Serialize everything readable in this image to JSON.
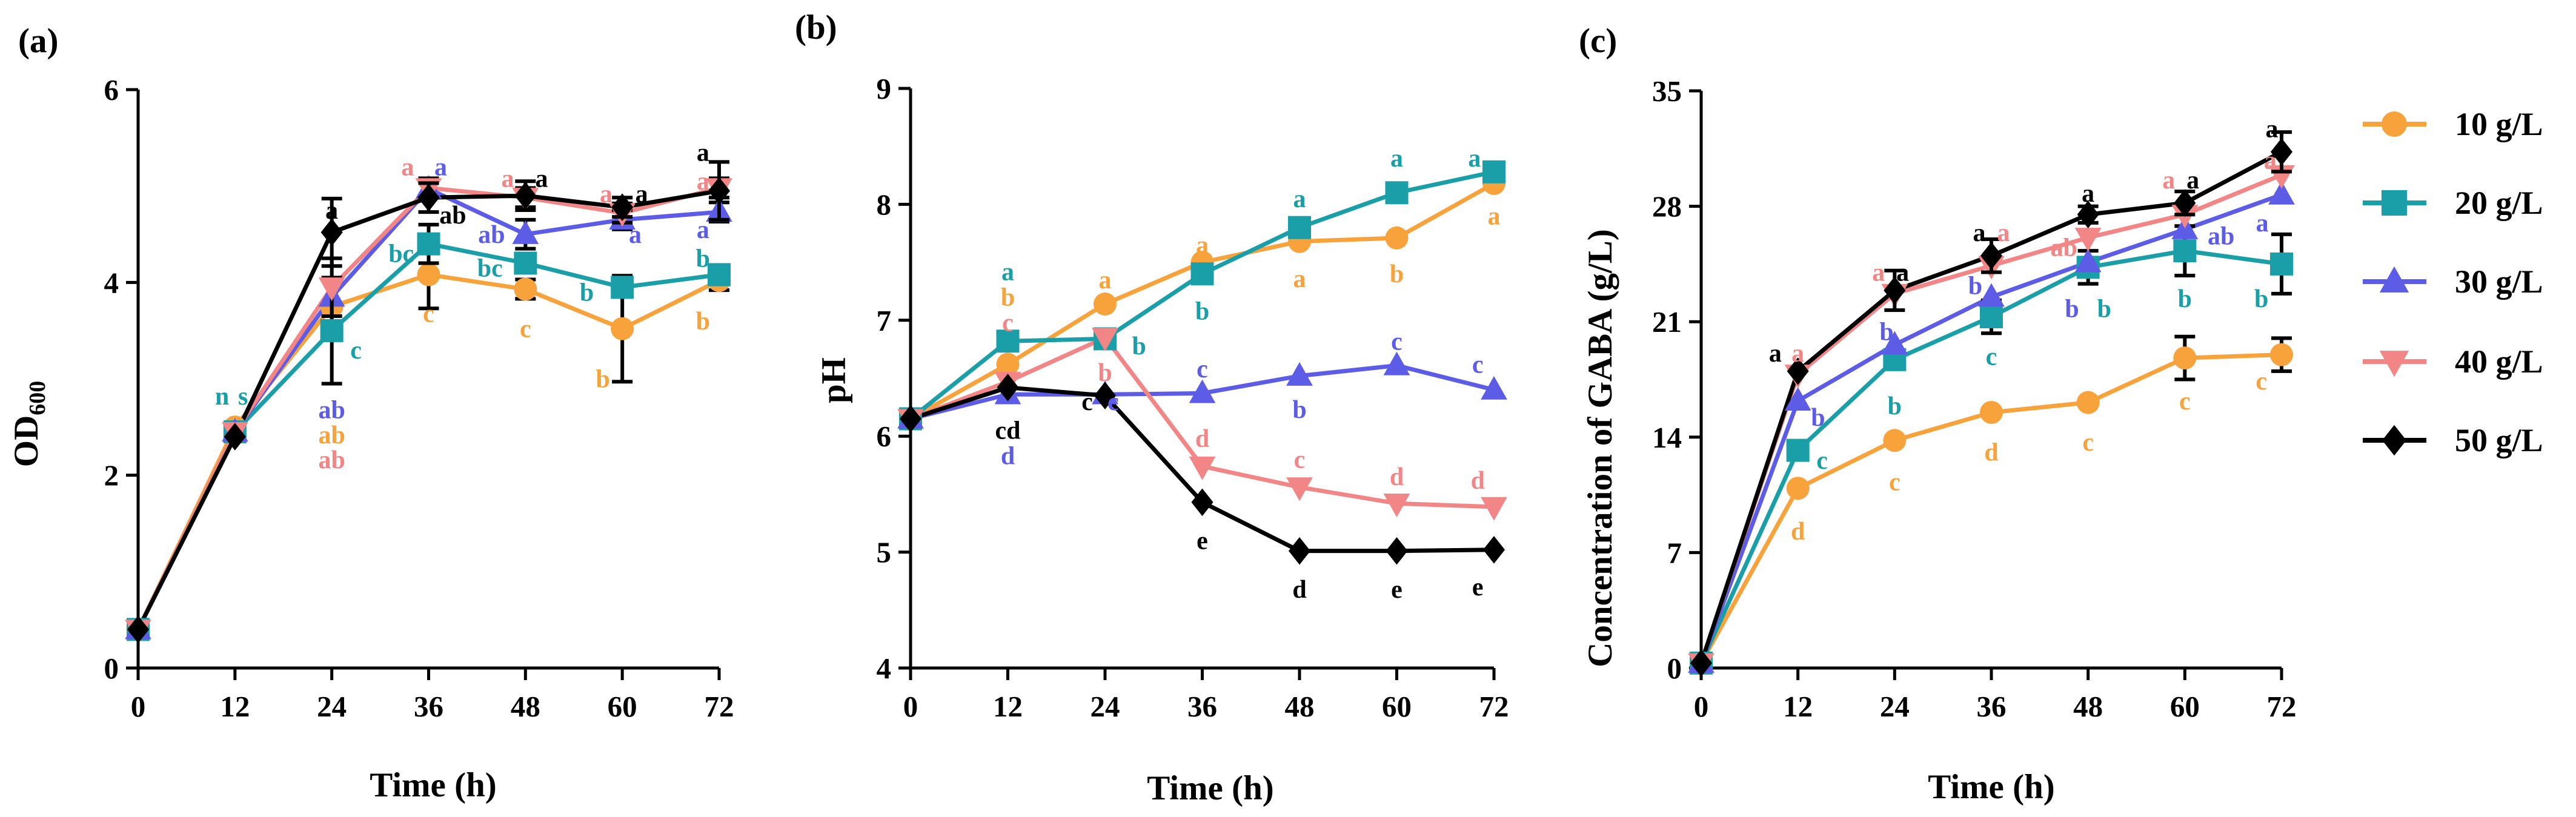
{
  "chart_data": [
    {
      "panel": "(a)",
      "type": "line",
      "xlabel": "Time (h)",
      "ylabel": "OD",
      "ylabel_sub": "600",
      "x": [
        0,
        12,
        24,
        36,
        48,
        60,
        72
      ],
      "x_ticks": [
        "0",
        "12",
        "24",
        "36",
        "48",
        "60",
        "72"
      ],
      "y_ticks": [
        "0",
        "2",
        "4",
        "6"
      ],
      "xlim": [
        0,
        72
      ],
      "ylim": [
        0,
        6
      ],
      "grid": false,
      "series": [
        {
          "name": "10 g/L",
          "color": "#F7A23B",
          "marker": "circle",
          "values": [
            0.4,
            2.5,
            3.75,
            4.08,
            3.93,
            3.52,
            4.02
          ],
          "errors": [
            0,
            0,
            0,
            0.35,
            0.1,
            0.55,
            0.1
          ]
        },
        {
          "name": "20 g/L",
          "color": "#1A9FA8",
          "marker": "square",
          "values": [
            0.4,
            2.45,
            3.5,
            4.4,
            4.2,
            3.95,
            4.08
          ],
          "errors": [
            0,
            0,
            0.55,
            0.2,
            0.1,
            0.1,
            0.1
          ]
        },
        {
          "name": "30 g/L",
          "color": "#5C5CE6",
          "marker": "triangle-up",
          "values": [
            0.4,
            2.45,
            3.85,
            4.97,
            4.5,
            4.65,
            4.73
          ],
          "errors": [
            0,
            0,
            0,
            0,
            0.15,
            0.1,
            0.1
          ]
        },
        {
          "name": "40 g/L",
          "color": "#F28585",
          "marker": "triangle-down",
          "values": [
            0.4,
            2.45,
            3.95,
            4.98,
            4.88,
            4.72,
            4.98
          ],
          "errors": [
            0,
            0,
            0.3,
            0.1,
            0.1,
            0.1,
            0.1
          ]
        },
        {
          "name": "50 g/L",
          "color": "#000000",
          "marker": "diamond",
          "values": [
            0.4,
            2.4,
            4.52,
            4.88,
            4.9,
            4.78,
            4.95
          ],
          "errors": [
            0,
            0,
            0.35,
            0.15,
            0.15,
            0.1,
            0.3
          ]
        }
      ],
      "annotations": [
        {
          "text": "n",
          "x": 10.4,
          "y": 2.82,
          "color": "#1A9FA8"
        },
        {
          "text": "s",
          "x": 13.0,
          "y": 2.82,
          "color": "#1A9FA8"
        },
        {
          "text": "a",
          "x": 24,
          "y": 4.75,
          "color": "#000000"
        },
        {
          "text": "c",
          "x": 27,
          "y": 3.3,
          "color": "#1A9FA8"
        },
        {
          "text": "ab",
          "x": 24,
          "y": 2.68,
          "color": "#5C5CE6"
        },
        {
          "text": "ab",
          "x": 24,
          "y": 2.42,
          "color": "#F7A23B"
        },
        {
          "text": "ab",
          "x": 24,
          "y": 2.16,
          "color": "#F28585"
        },
        {
          "text": "a",
          "x": 33.4,
          "y": 5.2,
          "color": "#F28585"
        },
        {
          "text": "a",
          "x": 37.5,
          "y": 5.2,
          "color": "#5C5CE6"
        },
        {
          "text": "ab",
          "x": 39,
          "y": 4.7,
          "color": "#000000"
        },
        {
          "text": "bc",
          "x": 32.6,
          "y": 4.3,
          "color": "#1A9FA8"
        },
        {
          "text": "c",
          "x": 36,
          "y": 3.68,
          "color": "#F7A23B"
        },
        {
          "text": "a",
          "x": 45.8,
          "y": 5.08,
          "color": "#F28585"
        },
        {
          "text": "a",
          "x": 50,
          "y": 5.08,
          "color": "#000000"
        },
        {
          "text": "ab",
          "x": 43.8,
          "y": 4.5,
          "color": "#5C5CE6"
        },
        {
          "text": "bc",
          "x": 43.6,
          "y": 4.15,
          "color": "#1A9FA8"
        },
        {
          "text": "c",
          "x": 48,
          "y": 3.52,
          "color": "#F7A23B"
        },
        {
          "text": "a",
          "x": 58,
          "y": 4.92,
          "color": "#F28585"
        },
        {
          "text": "a",
          "x": 62.4,
          "y": 4.92,
          "color": "#000000"
        },
        {
          "text": "a",
          "x": 61.6,
          "y": 4.5,
          "color": "#5C5CE6"
        },
        {
          "text": "b",
          "x": 55.6,
          "y": 3.9,
          "color": "#1A9FA8"
        },
        {
          "text": "b",
          "x": 57.6,
          "y": 3.0,
          "color": "#F7A23B"
        },
        {
          "text": "a",
          "x": 70,
          "y": 5.35,
          "color": "#000000"
        },
        {
          "text": "a",
          "x": 70,
          "y": 5.05,
          "color": "#F28585"
        },
        {
          "text": "a",
          "x": 70,
          "y": 4.55,
          "color": "#5C5CE6"
        },
        {
          "text": "b",
          "x": 70,
          "y": 4.25,
          "color": "#1A9FA8"
        },
        {
          "text": "b",
          "x": 70,
          "y": 3.6,
          "color": "#F7A23B"
        }
      ]
    },
    {
      "panel": "(b)",
      "type": "line",
      "xlabel": "Time (h)",
      "ylabel": "pH",
      "x": [
        0,
        12,
        24,
        36,
        48,
        60,
        72
      ],
      "x_ticks": [
        "0",
        "12",
        "24",
        "36",
        "48",
        "60",
        "72"
      ],
      "y_ticks": [
        "4",
        "5",
        "6",
        "7",
        "8",
        "9"
      ],
      "xlim": [
        0,
        72
      ],
      "ylim": [
        4,
        9
      ],
      "grid": false,
      "series": [
        {
          "name": "10 g/L",
          "color": "#F7A23B",
          "marker": "circle",
          "values": [
            6.15,
            6.62,
            7.14,
            7.5,
            7.68,
            7.71,
            8.18
          ],
          "errors": [
            0,
            0,
            0,
            0,
            0,
            0,
            0
          ]
        },
        {
          "name": "20 g/L",
          "color": "#1A9FA8",
          "marker": "square",
          "values": [
            6.15,
            6.82,
            6.84,
            7.4,
            7.8,
            8.1,
            8.28
          ],
          "errors": [
            0,
            0,
            0,
            0,
            0.08,
            0,
            0
          ]
        },
        {
          "name": "30 g/L",
          "color": "#5C5CE6",
          "marker": "triangle-up",
          "values": [
            6.15,
            6.36,
            6.36,
            6.37,
            6.52,
            6.61,
            6.4
          ],
          "errors": [
            0,
            0,
            0,
            0,
            0,
            0,
            0
          ]
        },
        {
          "name": "40 g/L",
          "color": "#F28585",
          "marker": "triangle-down",
          "values": [
            6.15,
            6.47,
            6.85,
            5.74,
            5.56,
            5.42,
            5.39
          ],
          "errors": [
            0,
            0,
            0,
            0,
            0,
            0,
            0
          ]
        },
        {
          "name": "50 g/L",
          "color": "#000000",
          "marker": "diamond",
          "values": [
            6.15,
            6.42,
            6.35,
            5.43,
            5.01,
            5.01,
            5.02
          ],
          "errors": [
            0,
            0,
            0,
            0,
            0,
            0,
            0
          ]
        }
      ],
      "annotations": [
        {
          "text": "a",
          "x": 12,
          "y": 7.42,
          "color": "#1A9FA8"
        },
        {
          "text": "b",
          "x": 12,
          "y": 7.2,
          "color": "#F7A23B"
        },
        {
          "text": "c",
          "x": 12,
          "y": 6.98,
          "color": "#F28585"
        },
        {
          "text": "cd",
          "x": 12,
          "y": 6.05,
          "color": "#000000"
        },
        {
          "text": "d",
          "x": 12,
          "y": 5.83,
          "color": "#5C5CE6"
        },
        {
          "text": "a",
          "x": 24,
          "y": 7.35,
          "color": "#F7A23B"
        },
        {
          "text": "b",
          "x": 24,
          "y": 6.55,
          "color": "#F28585"
        },
        {
          "text": "b",
          "x": 28.2,
          "y": 6.78,
          "color": "#1A9FA8"
        },
        {
          "text": "c",
          "x": 21.8,
          "y": 6.3,
          "color": "#000000"
        },
        {
          "text": "c",
          "x": 25.0,
          "y": 6.3,
          "color": "#5C5CE6"
        },
        {
          "text": "a",
          "x": 36,
          "y": 7.65,
          "color": "#F7A23B"
        },
        {
          "text": "b",
          "x": 36,
          "y": 7.08,
          "color": "#1A9FA8"
        },
        {
          "text": "c",
          "x": 36,
          "y": 6.58,
          "color": "#5C5CE6"
        },
        {
          "text": "d",
          "x": 36,
          "y": 5.98,
          "color": "#F28585"
        },
        {
          "text": "e",
          "x": 36,
          "y": 5.1,
          "color": "#000000"
        },
        {
          "text": "a",
          "x": 48,
          "y": 8.05,
          "color": "#1A9FA8"
        },
        {
          "text": "a",
          "x": 48,
          "y": 7.36,
          "color": "#F7A23B"
        },
        {
          "text": "c",
          "x": 48,
          "y": 5.8,
          "color": "#F28585"
        },
        {
          "text": "b",
          "x": 48,
          "y": 6.23,
          "color": "#5C5CE6"
        },
        {
          "text": "d",
          "x": 48,
          "y": 4.68,
          "color": "#000000"
        },
        {
          "text": "a",
          "x": 60,
          "y": 8.4,
          "color": "#1A9FA8"
        },
        {
          "text": "b",
          "x": 60,
          "y": 7.4,
          "color": "#F7A23B"
        },
        {
          "text": "c",
          "x": 60,
          "y": 6.82,
          "color": "#5C5CE6"
        },
        {
          "text": "d",
          "x": 60,
          "y": 5.65,
          "color": "#F28585"
        },
        {
          "text": "e",
          "x": 60,
          "y": 4.68,
          "color": "#000000"
        },
        {
          "text": "a",
          "x": 69.6,
          "y": 8.4,
          "color": "#1A9FA8"
        },
        {
          "text": "a",
          "x": 72,
          "y": 7.9,
          "color": "#F7A23B"
        },
        {
          "text": "c",
          "x": 70,
          "y": 6.62,
          "color": "#5C5CE6"
        },
        {
          "text": "d",
          "x": 70,
          "y": 5.62,
          "color": "#F28585"
        },
        {
          "text": "e",
          "x": 70,
          "y": 4.7,
          "color": "#000000"
        }
      ]
    },
    {
      "panel": "(c)",
      "type": "line",
      "xlabel": "Time (h)",
      "ylabel": "Concentration of GABA (g/L)",
      "x": [
        0,
        12,
        24,
        36,
        48,
        60,
        72
      ],
      "x_ticks": [
        "0",
        "12",
        "24",
        "36",
        "48",
        "60",
        "72"
      ],
      "y_ticks": [
        "0",
        "7",
        "14",
        "21",
        "28",
        "35"
      ],
      "xlim": [
        0,
        72
      ],
      "ylim": [
        0,
        35
      ],
      "grid": false,
      "series": [
        {
          "name": "10 g/L",
          "color": "#F7A23B",
          "marker": "circle",
          "values": [
            0.3,
            10.9,
            13.8,
            15.5,
            16.1,
            18.8,
            19.0
          ],
          "errors": [
            0,
            0,
            0,
            0,
            0,
            1.3,
            1.0
          ]
        },
        {
          "name": "20 g/L",
          "color": "#1A9FA8",
          "marker": "square",
          "values": [
            0.3,
            13.2,
            18.7,
            21.3,
            24.3,
            25.3,
            24.5
          ],
          "errors": [
            0,
            0,
            0,
            1.0,
            1.0,
            1.5,
            1.8
          ]
        },
        {
          "name": "30 g/L",
          "color": "#5C5CE6",
          "marker": "triangle-up",
          "values": [
            0.3,
            16.2,
            19.6,
            22.5,
            24.6,
            26.6,
            28.7
          ],
          "errors": [
            0,
            0,
            0,
            0,
            0,
            0,
            0
          ]
        },
        {
          "name": "40 g/L",
          "color": "#F28585",
          "marker": "triangle-down",
          "values": [
            0.3,
            17.8,
            22.7,
            24.4,
            26.1,
            27.5,
            29.9
          ],
          "errors": [
            0,
            0,
            0,
            0,
            0,
            0,
            0
          ]
        },
        {
          "name": "50 g/L",
          "color": "#000000",
          "marker": "diamond",
          "values": [
            0.3,
            18.0,
            22.9,
            25.0,
            27.5,
            28.2,
            31.3
          ],
          "errors": [
            0,
            0,
            1.2,
            1.0,
            0.5,
            0.7,
            1.2
          ]
        }
      ],
      "annotations": [
        {
          "text": "a",
          "x": 9.2,
          "y": 19.1,
          "color": "#000000"
        },
        {
          "text": "a",
          "x": 12,
          "y": 19.1,
          "color": "#F28585"
        },
        {
          "text": "b",
          "x": 14.5,
          "y": 15.2,
          "color": "#5C5CE6"
        },
        {
          "text": "c",
          "x": 15.0,
          "y": 12.6,
          "color": "#1A9FA8"
        },
        {
          "text": "d",
          "x": 12,
          "y": 8.3,
          "color": "#F7A23B"
        },
        {
          "text": "a",
          "x": 22,
          "y": 24.0,
          "color": "#F28585"
        },
        {
          "text": "a",
          "x": 25,
          "y": 24.0,
          "color": "#000000"
        },
        {
          "text": "b",
          "x": 23,
          "y": 20.4,
          "color": "#5C5CE6"
        },
        {
          "text": "b",
          "x": 24,
          "y": 15.9,
          "color": "#1A9FA8"
        },
        {
          "text": "c",
          "x": 24,
          "y": 11.3,
          "color": "#F7A23B"
        },
        {
          "text": "a",
          "x": 34.5,
          "y": 26.4,
          "color": "#000000"
        },
        {
          "text": "a",
          "x": 37.5,
          "y": 26.4,
          "color": "#F28585"
        },
        {
          "text": "b",
          "x": 34,
          "y": 23.2,
          "color": "#5C5CE6"
        },
        {
          "text": "c",
          "x": 36,
          "y": 18.9,
          "color": "#1A9FA8"
        },
        {
          "text": "d",
          "x": 36,
          "y": 13.1,
          "color": "#F7A23B"
        },
        {
          "text": "a",
          "x": 48,
          "y": 28.8,
          "color": "#000000"
        },
        {
          "text": "ab",
          "x": 45,
          "y": 25.5,
          "color": "#F28585"
        },
        {
          "text": "b",
          "x": 46,
          "y": 21.8,
          "color": "#5C5CE6"
        },
        {
          "text": "b",
          "x": 50,
          "y": 21.8,
          "color": "#1A9FA8"
        },
        {
          "text": "c",
          "x": 48,
          "y": 13.7,
          "color": "#F7A23B"
        },
        {
          "text": "a",
          "x": 58,
          "y": 29.6,
          "color": "#F28585"
        },
        {
          "text": "a",
          "x": 61,
          "y": 29.6,
          "color": "#000000"
        },
        {
          "text": "ab",
          "x": 64.5,
          "y": 26.2,
          "color": "#5C5CE6"
        },
        {
          "text": "b",
          "x": 60,
          "y": 22.4,
          "color": "#1A9FA8"
        },
        {
          "text": "c",
          "x": 60,
          "y": 16.2,
          "color": "#F7A23B"
        },
        {
          "text": "a",
          "x": 70.8,
          "y": 32.7,
          "color": "#000000"
        },
        {
          "text": "a",
          "x": 70.6,
          "y": 30.8,
          "color": "#F28585"
        },
        {
          "text": "a",
          "x": 69.6,
          "y": 27.0,
          "color": "#5C5CE6"
        },
        {
          "text": "b",
          "x": 69.5,
          "y": 22.4,
          "color": "#1A9FA8"
        },
        {
          "text": "c",
          "x": 69.5,
          "y": 17.4,
          "color": "#F7A23B"
        }
      ]
    }
  ],
  "legend": {
    "placement": "right",
    "items": [
      {
        "label": "10 g/L",
        "color": "#F7A23B",
        "marker": "circle"
      },
      {
        "label": "20 g/L",
        "color": "#1A9FA8",
        "marker": "square"
      },
      {
        "label": "30 g/L",
        "color": "#5C5CE6",
        "marker": "triangle-up"
      },
      {
        "label": "40 g/L",
        "color": "#F28585",
        "marker": "triangle-down"
      },
      {
        "label": "50 g/L",
        "color": "#000000",
        "marker": "diamond"
      }
    ]
  }
}
